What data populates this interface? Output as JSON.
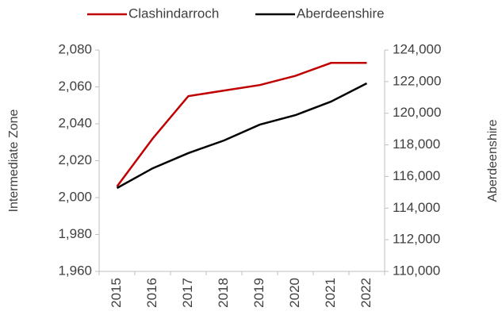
{
  "chart_data": {
    "type": "line",
    "categories": [
      "2015",
      "2016",
      "2017",
      "2018",
      "2019",
      "2020",
      "2021",
      "2022"
    ],
    "series": [
      {
        "name": "Clashindarroch",
        "color": "#c00000",
        "values": [
          2006,
          2032,
          2055,
          2058,
          2061,
          2066,
          2073,
          2073
        ]
      },
      {
        "name": "Aberdeenshire",
        "color": "#000000",
        "axis": "y2",
        "values": [
          115270,
          116520,
          117480,
          118280,
          119280,
          119880,
          120740,
          121890
        ]
      }
    ],
    "ylabel": "Intermediate Zone",
    "y2label": "Aberdeenshire",
    "ylim": [
      1960,
      2080
    ],
    "yticks": [
      {
        "value": 1960,
        "label": "1,960"
      },
      {
        "value": 1980,
        "label": "1,980"
      },
      {
        "value": 2000,
        "label": "2,000"
      },
      {
        "value": 2020,
        "label": "2,020"
      },
      {
        "value": 2040,
        "label": "2,040"
      },
      {
        "value": 2060,
        "label": "2,060"
      },
      {
        "value": 2080,
        "label": "2,080"
      }
    ],
    "y2lim": [
      110000,
      124000
    ],
    "y2ticks": [
      {
        "value": 110000,
        "label": "110,000"
      },
      {
        "value": 112000,
        "label": "112,000"
      },
      {
        "value": 114000,
        "label": "114,000"
      },
      {
        "value": 116000,
        "label": "116,000"
      },
      {
        "value": 118000,
        "label": "118,000"
      },
      {
        "value": 120000,
        "label": "120,000"
      },
      {
        "value": 122000,
        "label": "122,000"
      },
      {
        "value": 124000,
        "label": "124,000"
      }
    ],
    "legend": "top"
  }
}
